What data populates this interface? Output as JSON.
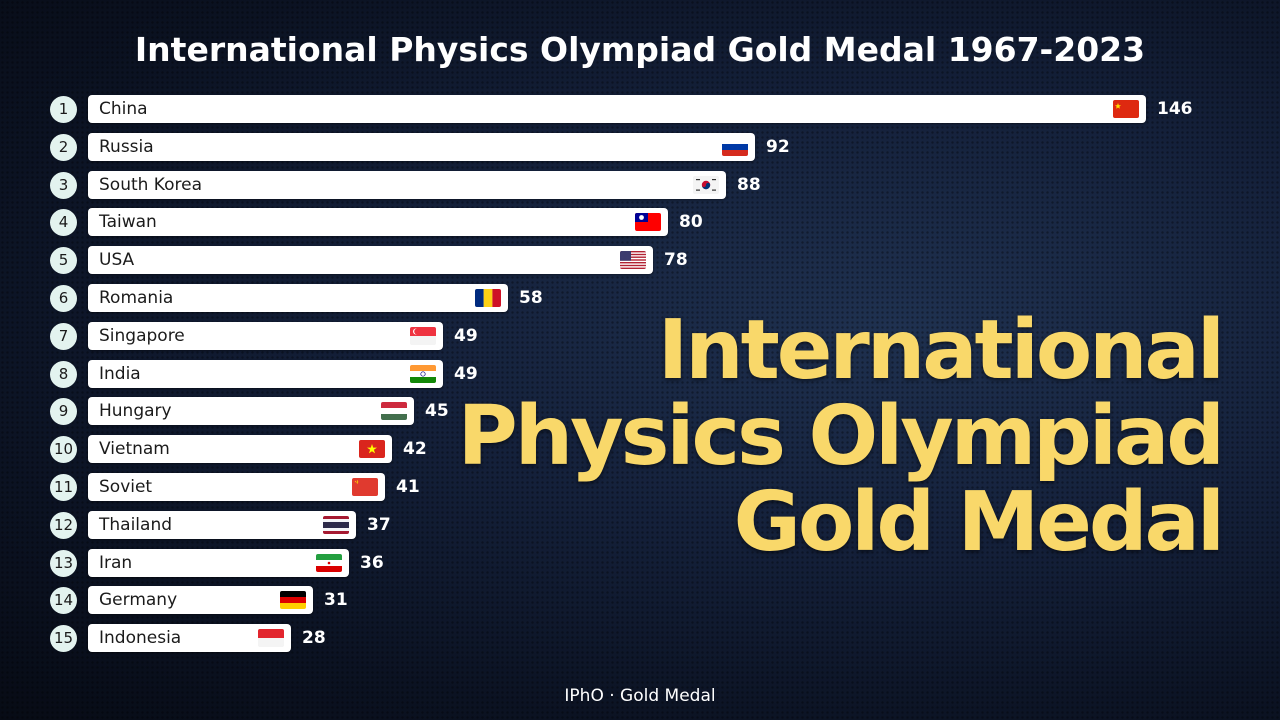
{
  "header": {
    "title": "International Physics Olympiad Gold Medal 1967-2023"
  },
  "overlay": {
    "line1": "International",
    "line2": "Physics Olympiad",
    "line3": "Gold Medal",
    "color": "#f9d86a"
  },
  "footer": {
    "caption": "IPhO · Gold Medal"
  },
  "chart_data": {
    "type": "bar",
    "orientation": "horizontal",
    "title": "International Physics Olympiad Gold Medal 1967-2023",
    "xlabel": "",
    "ylabel": "",
    "categories": [
      "China",
      "Russia",
      "South Korea",
      "Taiwan",
      "USA",
      "Romania",
      "Singapore",
      "India",
      "Hungary",
      "Vietnam",
      "Soviet",
      "Thailand",
      "Iran",
      "Germany",
      "Indonesia"
    ],
    "values": [
      146,
      92,
      88,
      80,
      78,
      58,
      49,
      49,
      45,
      42,
      41,
      37,
      36,
      31,
      28
    ],
    "ranks": [
      1,
      2,
      3,
      4,
      5,
      6,
      7,
      8,
      9,
      10,
      11,
      12,
      13,
      14,
      15
    ],
    "flags": [
      "china-flag-icon",
      "russia-flag-icon",
      "south-korea-flag-icon",
      "taiwan-flag-icon",
      "usa-flag-icon",
      "romania-flag-icon",
      "singapore-flag-icon",
      "india-flag-icon",
      "hungary-flag-icon",
      "vietnam-flag-icon",
      "soviet-flag-icon",
      "thailand-flag-icon",
      "iran-flag-icon",
      "germany-flag-icon",
      "indonesia-flag-icon"
    ],
    "grid": false,
    "legend": "none",
    "bar_color": "#ffffff",
    "value_label_color": "#ffffff"
  }
}
